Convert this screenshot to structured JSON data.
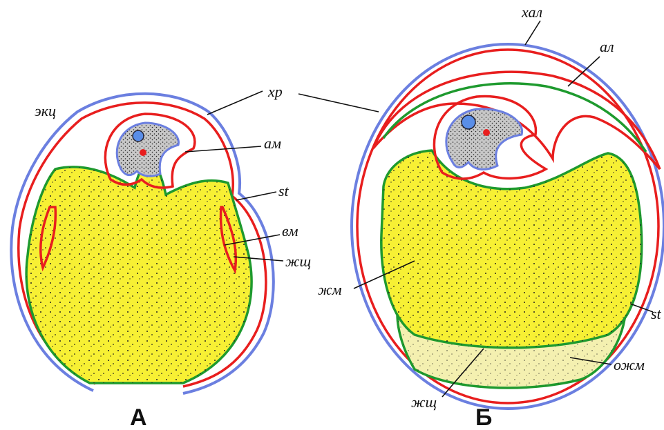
{
  "panels": [
    {
      "title": "А",
      "labels": [
        "экц",
        "ам",
        "st",
        "вм",
        "жщ"
      ]
    },
    {
      "title": "Б",
      "labels": [
        "хал",
        "ал",
        "жм",
        "st",
        "ожм",
        "жщ"
      ]
    }
  ],
  "shared_label": "хр"
}
